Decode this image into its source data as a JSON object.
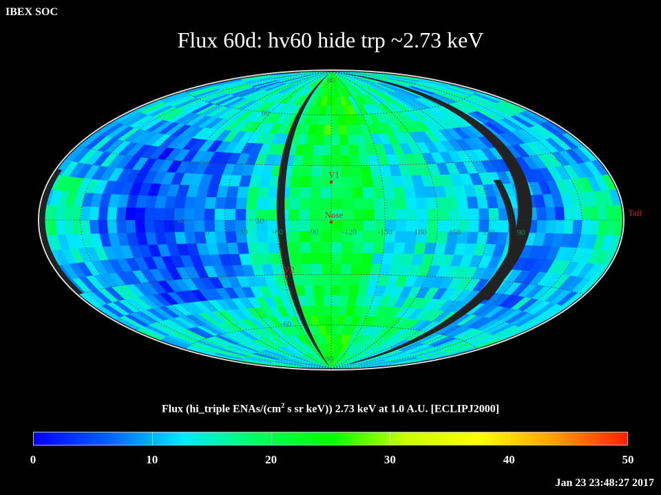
{
  "header": {
    "org": "IBEX SOC",
    "title": "Flux   60d: hv60 hide trp ~2.73 keV"
  },
  "map": {
    "projection": "Mollweide (Hammer-Aitoff style) all-sky map",
    "lat_labels": [
      {
        "text": "60",
        "lon": 65,
        "lat": 60
      },
      {
        "text": "30",
        "lon": 80,
        "lat": 30
      },
      {
        "text": "60",
        "lon": 85,
        "lat": 0
      },
      {
        "text": "30",
        "lon": 40,
        "lat": 0
      },
      {
        "text": "-30",
        "lon": 70,
        "lat": -30
      },
      {
        "text": "-60",
        "lon": 42,
        "lat": -58
      },
      {
        "text": "-80",
        "lon": 10,
        "lat": -82
      },
      {
        "text": "80",
        "lon": 0,
        "lat": 84
      }
    ],
    "lon_labels": [
      {
        "text": "0",
        "lon": 70
      },
      {
        "text": "-30",
        "lon": 50
      },
      {
        "text": "-60",
        "lon": 30
      },
      {
        "text": "-90",
        "lon": 10
      },
      {
        "text": "-120",
        "lon": -10
      },
      {
        "text": "-150",
        "lon": -30
      },
      {
        "text": "180",
        "lon": -50
      },
      {
        "text": "150",
        "lon": -70
      },
      {
        "text": "120",
        "lon": -90
      },
      {
        "text": "90",
        "lon": -110
      }
    ],
    "markers": [
      {
        "text": "V1",
        "lon": 0,
        "lat": 22
      },
      {
        "text": "Nose",
        "lon": 0,
        "lat": 0
      },
      {
        "text": "V2",
        "lon": 28,
        "lat": -30
      },
      {
        "text": "Tail",
        "lon": -180,
        "lat": 0
      }
    ],
    "colors": {
      "grid": "#3a3a3a",
      "label": "#1a8a6a",
      "marker": "#cc2222",
      "gap": "#222222",
      "rim": "#dddddd"
    }
  },
  "colorbar": {
    "caption_pre": "Flux (hi_triple ENAs/(cm",
    "caption_sup": "2",
    "caption_post": " s sr keV))  2.73 keV at 1.0 A.U. [ECLIPJ2000]",
    "min": 0,
    "max": 50,
    "ticks": [
      "0",
      "10",
      "20",
      "30",
      "40",
      "50"
    ],
    "stops": [
      "#0000ff",
      "#0060ff",
      "#00e8ff",
      "#00ff60",
      "#00ff00",
      "#c8ff00",
      "#ffff00",
      "#ffa000",
      "#ff2000"
    ]
  },
  "footer": {
    "timestamp": "Jan 23 23:48:27 2017"
  }
}
